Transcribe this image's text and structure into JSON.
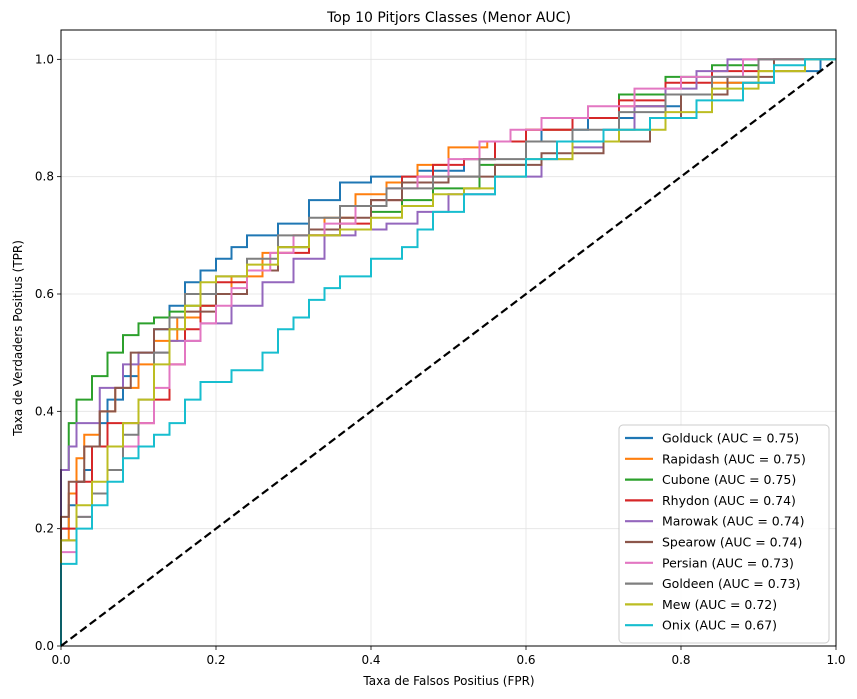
{
  "chart_data": {
    "type": "line",
    "title": "Top 10 Pitjors Classes (Menor AUC)",
    "xlabel": "Taxa de Falsos Positius (FPR)",
    "ylabel": "Taxa de Verdaders Positius (TPR)",
    "xlim": [
      0.0,
      1.0
    ],
    "ylim": [
      0.0,
      1.05
    ],
    "xticks": [
      "0.0",
      "0.2",
      "0.4",
      "0.6",
      "0.8",
      "1.0"
    ],
    "yticks": [
      "0.0",
      "0.2",
      "0.4",
      "0.6",
      "0.8",
      "1.0"
    ],
    "grid": true,
    "legend_position": "lower-right",
    "diagonal": {
      "color": "#000000",
      "style": "dashed"
    },
    "series": [
      {
        "name": "Golduck (AUC = 0.75)",
        "color": "#1f77b4",
        "points": [
          [
            0,
            0
          ],
          [
            0,
            0.12
          ],
          [
            0.01,
            0.2
          ],
          [
            0.02,
            0.24
          ],
          [
            0.03,
            0.28
          ],
          [
            0.04,
            0.3
          ],
          [
            0.05,
            0.34
          ],
          [
            0.06,
            0.38
          ],
          [
            0.08,
            0.42
          ],
          [
            0.1,
            0.46
          ],
          [
            0.12,
            0.5
          ],
          [
            0.14,
            0.54
          ],
          [
            0.16,
            0.58
          ],
          [
            0.18,
            0.62
          ],
          [
            0.2,
            0.64
          ],
          [
            0.22,
            0.66
          ],
          [
            0.24,
            0.68
          ],
          [
            0.28,
            0.7
          ],
          [
            0.32,
            0.72
          ],
          [
            0.36,
            0.76
          ],
          [
            0.4,
            0.79
          ],
          [
            0.46,
            0.8
          ],
          [
            0.52,
            0.81
          ],
          [
            0.56,
            0.83
          ],
          [
            0.62,
            0.86
          ],
          [
            0.68,
            0.88
          ],
          [
            0.74,
            0.9
          ],
          [
            0.8,
            0.92
          ],
          [
            0.86,
            0.94
          ],
          [
            0.92,
            0.96
          ],
          [
            0.98,
            0.98
          ],
          [
            1,
            1
          ]
        ]
      },
      {
        "name": "Rapidash (AUC = 0.75)",
        "color": "#ff7f0e",
        "points": [
          [
            0,
            0
          ],
          [
            0,
            0.1
          ],
          [
            0.01,
            0.18
          ],
          [
            0.02,
            0.26
          ],
          [
            0.03,
            0.32
          ],
          [
            0.05,
            0.36
          ],
          [
            0.07,
            0.4
          ],
          [
            0.1,
            0.44
          ],
          [
            0.12,
            0.48
          ],
          [
            0.15,
            0.52
          ],
          [
            0.18,
            0.56
          ],
          [
            0.22,
            0.6
          ],
          [
            0.26,
            0.63
          ],
          [
            0.3,
            0.67
          ],
          [
            0.34,
            0.7
          ],
          [
            0.38,
            0.73
          ],
          [
            0.42,
            0.77
          ],
          [
            0.46,
            0.79
          ],
          [
            0.5,
            0.82
          ],
          [
            0.55,
            0.85
          ],
          [
            0.6,
            0.86
          ],
          [
            0.66,
            0.88
          ],
          [
            0.72,
            0.9
          ],
          [
            0.78,
            0.92
          ],
          [
            0.84,
            0.94
          ],
          [
            0.9,
            0.96
          ],
          [
            0.96,
            0.98
          ],
          [
            1,
            1
          ]
        ]
      },
      {
        "name": "Cubone (AUC = 0.75)",
        "color": "#2ca02c",
        "points": [
          [
            0,
            0
          ],
          [
            0,
            0.14
          ],
          [
            0.01,
            0.3
          ],
          [
            0.02,
            0.38
          ],
          [
            0.04,
            0.42
          ],
          [
            0.06,
            0.46
          ],
          [
            0.08,
            0.5
          ],
          [
            0.1,
            0.53
          ],
          [
            0.12,
            0.55
          ],
          [
            0.14,
            0.56
          ],
          [
            0.16,
            0.57
          ],
          [
            0.2,
            0.58
          ],
          [
            0.24,
            0.6
          ],
          [
            0.28,
            0.64
          ],
          [
            0.32,
            0.68
          ],
          [
            0.36,
            0.7
          ],
          [
            0.4,
            0.71
          ],
          [
            0.44,
            0.74
          ],
          [
            0.48,
            0.76
          ],
          [
            0.54,
            0.78
          ],
          [
            0.6,
            0.82
          ],
          [
            0.66,
            0.86
          ],
          [
            0.72,
            0.9
          ],
          [
            0.78,
            0.94
          ],
          [
            0.84,
            0.97
          ],
          [
            0.9,
            0.99
          ],
          [
            0.96,
            1
          ],
          [
            1,
            1
          ]
        ]
      },
      {
        "name": "Rhydon (AUC = 0.74)",
        "color": "#d62728",
        "points": [
          [
            0,
            0
          ],
          [
            0,
            0.12
          ],
          [
            0.02,
            0.2
          ],
          [
            0.04,
            0.28
          ],
          [
            0.06,
            0.34
          ],
          [
            0.08,
            0.38
          ],
          [
            0.12,
            0.38
          ],
          [
            0.14,
            0.42
          ],
          [
            0.16,
            0.48
          ],
          [
            0.18,
            0.54
          ],
          [
            0.2,
            0.58
          ],
          [
            0.24,
            0.62
          ],
          [
            0.28,
            0.64
          ],
          [
            0.32,
            0.67
          ],
          [
            0.36,
            0.7
          ],
          [
            0.4,
            0.72
          ],
          [
            0.44,
            0.76
          ],
          [
            0.48,
            0.8
          ],
          [
            0.52,
            0.82
          ],
          [
            0.56,
            0.83
          ],
          [
            0.6,
            0.86
          ],
          [
            0.66,
            0.88
          ],
          [
            0.72,
            0.9
          ],
          [
            0.78,
            0.93
          ],
          [
            0.84,
            0.96
          ],
          [
            0.9,
            0.98
          ],
          [
            1,
            1
          ]
        ]
      },
      {
        "name": "Marowak (AUC = 0.74)",
        "color": "#9467bd",
        "points": [
          [
            0,
            0
          ],
          [
            0,
            0.14
          ],
          [
            0.01,
            0.3
          ],
          [
            0.02,
            0.34
          ],
          [
            0.05,
            0.38
          ],
          [
            0.08,
            0.44
          ],
          [
            0.1,
            0.48
          ],
          [
            0.14,
            0.5
          ],
          [
            0.18,
            0.52
          ],
          [
            0.22,
            0.55
          ],
          [
            0.26,
            0.58
          ],
          [
            0.3,
            0.62
          ],
          [
            0.34,
            0.66
          ],
          [
            0.38,
            0.7
          ],
          [
            0.42,
            0.71
          ],
          [
            0.46,
            0.72
          ],
          [
            0.5,
            0.74
          ],
          [
            0.56,
            0.77
          ],
          [
            0.62,
            0.8
          ],
          [
            0.66,
            0.83
          ],
          [
            0.7,
            0.85
          ],
          [
            0.74,
            0.88
          ],
          [
            0.78,
            0.92
          ],
          [
            0.82,
            0.95
          ],
          [
            0.86,
            0.98
          ],
          [
            0.9,
            1
          ],
          [
            1,
            1
          ]
        ]
      },
      {
        "name": "Spearow (AUC = 0.74)",
        "color": "#8c564b",
        "points": [
          [
            0,
            0
          ],
          [
            0,
            0.12
          ],
          [
            0.01,
            0.22
          ],
          [
            0.03,
            0.28
          ],
          [
            0.05,
            0.34
          ],
          [
            0.07,
            0.4
          ],
          [
            0.09,
            0.44
          ],
          [
            0.12,
            0.5
          ],
          [
            0.16,
            0.54
          ],
          [
            0.2,
            0.57
          ],
          [
            0.24,
            0.6
          ],
          [
            0.28,
            0.64
          ],
          [
            0.32,
            0.68
          ],
          [
            0.36,
            0.71
          ],
          [
            0.4,
            0.73
          ],
          [
            0.44,
            0.76
          ],
          [
            0.5,
            0.79
          ],
          [
            0.56,
            0.8
          ],
          [
            0.62,
            0.82
          ],
          [
            0.7,
            0.84
          ],
          [
            0.76,
            0.86
          ],
          [
            0.8,
            0.9
          ],
          [
            0.86,
            0.94
          ],
          [
            0.92,
            0.97
          ],
          [
            1,
            1
          ]
        ]
      },
      {
        "name": "Persian (AUC = 0.73)",
        "color": "#e377c2",
        "points": [
          [
            0,
            0
          ],
          [
            0,
            0.1
          ],
          [
            0.02,
            0.16
          ],
          [
            0.04,
            0.22
          ],
          [
            0.06,
            0.26
          ],
          [
            0.08,
            0.3
          ],
          [
            0.1,
            0.34
          ],
          [
            0.12,
            0.38
          ],
          [
            0.14,
            0.44
          ],
          [
            0.16,
            0.48
          ],
          [
            0.18,
            0.52
          ],
          [
            0.2,
            0.55
          ],
          [
            0.22,
            0.58
          ],
          [
            0.24,
            0.61
          ],
          [
            0.27,
            0.64
          ],
          [
            0.3,
            0.67
          ],
          [
            0.34,
            0.7
          ],
          [
            0.38,
            0.72
          ],
          [
            0.42,
            0.75
          ],
          [
            0.46,
            0.78
          ],
          [
            0.5,
            0.8
          ],
          [
            0.54,
            0.83
          ],
          [
            0.58,
            0.86
          ],
          [
            0.62,
            0.88
          ],
          [
            0.68,
            0.9
          ],
          [
            0.74,
            0.92
          ],
          [
            0.8,
            0.95
          ],
          [
            0.88,
            0.97
          ],
          [
            1,
            1
          ]
        ]
      },
      {
        "name": "Goldeen (AUC = 0.73)",
        "color": "#7f7f7f",
        "points": [
          [
            0,
            0
          ],
          [
            0,
            0.1
          ],
          [
            0.02,
            0.18
          ],
          [
            0.04,
            0.22
          ],
          [
            0.06,
            0.26
          ],
          [
            0.08,
            0.3
          ],
          [
            0.1,
            0.36
          ],
          [
            0.12,
            0.42
          ],
          [
            0.14,
            0.5
          ],
          [
            0.16,
            0.56
          ],
          [
            0.2,
            0.6
          ],
          [
            0.24,
            0.63
          ],
          [
            0.28,
            0.66
          ],
          [
            0.32,
            0.7
          ],
          [
            0.36,
            0.73
          ],
          [
            0.42,
            0.75
          ],
          [
            0.48,
            0.78
          ],
          [
            0.54,
            0.8
          ],
          [
            0.6,
            0.83
          ],
          [
            0.66,
            0.86
          ],
          [
            0.72,
            0.88
          ],
          [
            0.78,
            0.91
          ],
          [
            0.84,
            0.94
          ],
          [
            0.9,
            0.97
          ],
          [
            1,
            1
          ]
        ]
      },
      {
        "name": "Mew (AUC = 0.72)",
        "color": "#bcbd22",
        "points": [
          [
            0,
            0
          ],
          [
            0,
            0.12
          ],
          [
            0.02,
            0.18
          ],
          [
            0.04,
            0.24
          ],
          [
            0.06,
            0.28
          ],
          [
            0.08,
            0.34
          ],
          [
            0.1,
            0.38
          ],
          [
            0.12,
            0.42
          ],
          [
            0.14,
            0.48
          ],
          [
            0.16,
            0.54
          ],
          [
            0.18,
            0.58
          ],
          [
            0.2,
            0.62
          ],
          [
            0.24,
            0.63
          ],
          [
            0.28,
            0.65
          ],
          [
            0.32,
            0.68
          ],
          [
            0.36,
            0.7
          ],
          [
            0.4,
            0.71
          ],
          [
            0.44,
            0.73
          ],
          [
            0.48,
            0.75
          ],
          [
            0.52,
            0.77
          ],
          [
            0.56,
            0.78
          ],
          [
            0.6,
            0.8
          ],
          [
            0.66,
            0.83
          ],
          [
            0.72,
            0.86
          ],
          [
            0.78,
            0.88
          ],
          [
            0.84,
            0.91
          ],
          [
            0.9,
            0.95
          ],
          [
            0.96,
            0.98
          ],
          [
            1,
            1
          ]
        ]
      },
      {
        "name": "Onix (AUC = 0.67)",
        "color": "#17becf",
        "points": [
          [
            0,
            0
          ],
          [
            0,
            0.08
          ],
          [
            0.02,
            0.14
          ],
          [
            0.04,
            0.2
          ],
          [
            0.06,
            0.24
          ],
          [
            0.08,
            0.28
          ],
          [
            0.1,
            0.32
          ],
          [
            0.12,
            0.34
          ],
          [
            0.14,
            0.36
          ],
          [
            0.16,
            0.38
          ],
          [
            0.18,
            0.42
          ],
          [
            0.22,
            0.45
          ],
          [
            0.26,
            0.47
          ],
          [
            0.28,
            0.5
          ],
          [
            0.3,
            0.54
          ],
          [
            0.32,
            0.56
          ],
          [
            0.34,
            0.59
          ],
          [
            0.36,
            0.61
          ],
          [
            0.4,
            0.63
          ],
          [
            0.44,
            0.66
          ],
          [
            0.46,
            0.68
          ],
          [
            0.48,
            0.71
          ],
          [
            0.52,
            0.74
          ],
          [
            0.56,
            0.77
          ],
          [
            0.6,
            0.8
          ],
          [
            0.64,
            0.83
          ],
          [
            0.7,
            0.86
          ],
          [
            0.76,
            0.88
          ],
          [
            0.82,
            0.9
          ],
          [
            0.88,
            0.93
          ],
          [
            0.92,
            0.96
          ],
          [
            0.96,
            0.99
          ],
          [
            1,
            1
          ]
        ]
      }
    ]
  }
}
